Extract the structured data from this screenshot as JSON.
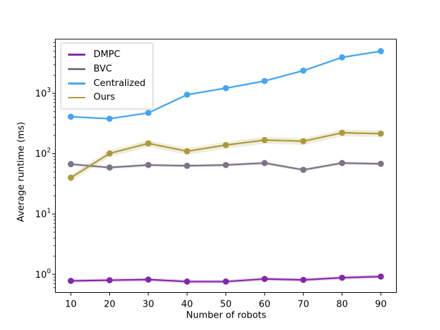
{
  "chart_data": {
    "type": "line",
    "title": "",
    "xlabel": "Number of robots",
    "ylabel": "Average runtime (ms)",
    "x": [
      10,
      20,
      30,
      40,
      50,
      60,
      70,
      80,
      90
    ],
    "x_ticks": [
      10,
      20,
      30,
      40,
      50,
      60,
      70,
      80,
      90
    ],
    "y_scale": "log",
    "y_ticks": [
      1,
      10,
      100,
      1000
    ],
    "xlim": [
      6,
      94
    ],
    "ylim": [
      0.5,
      7900
    ],
    "grid": false,
    "legend_position": "upper left",
    "marker": "circle",
    "series": [
      {
        "name": "DMPC",
        "color": "#8527a8",
        "band_ratio": 0.07,
        "values": [
          0.78,
          0.8,
          0.82,
          0.76,
          0.76,
          0.84,
          0.81,
          0.88,
          0.92
        ]
      },
      {
        "name": "BVC",
        "color": "#7b7388",
        "band_ratio": 0.06,
        "values": [
          67,
          59,
          65,
          63,
          65,
          70,
          54,
          70,
          68
        ]
      },
      {
        "name": "Centralized",
        "color": "#45a5f2",
        "band_ratio": 0.04,
        "values": [
          410,
          380,
          475,
          950,
          1220,
          1600,
          2380,
          3950,
          5000
        ]
      },
      {
        "name": "Ours",
        "color": "#ab9b3c",
        "band_ratio": 0.13,
        "values": [
          40,
          101,
          148,
          110,
          139,
          168,
          161,
          222,
          215
        ]
      }
    ]
  }
}
